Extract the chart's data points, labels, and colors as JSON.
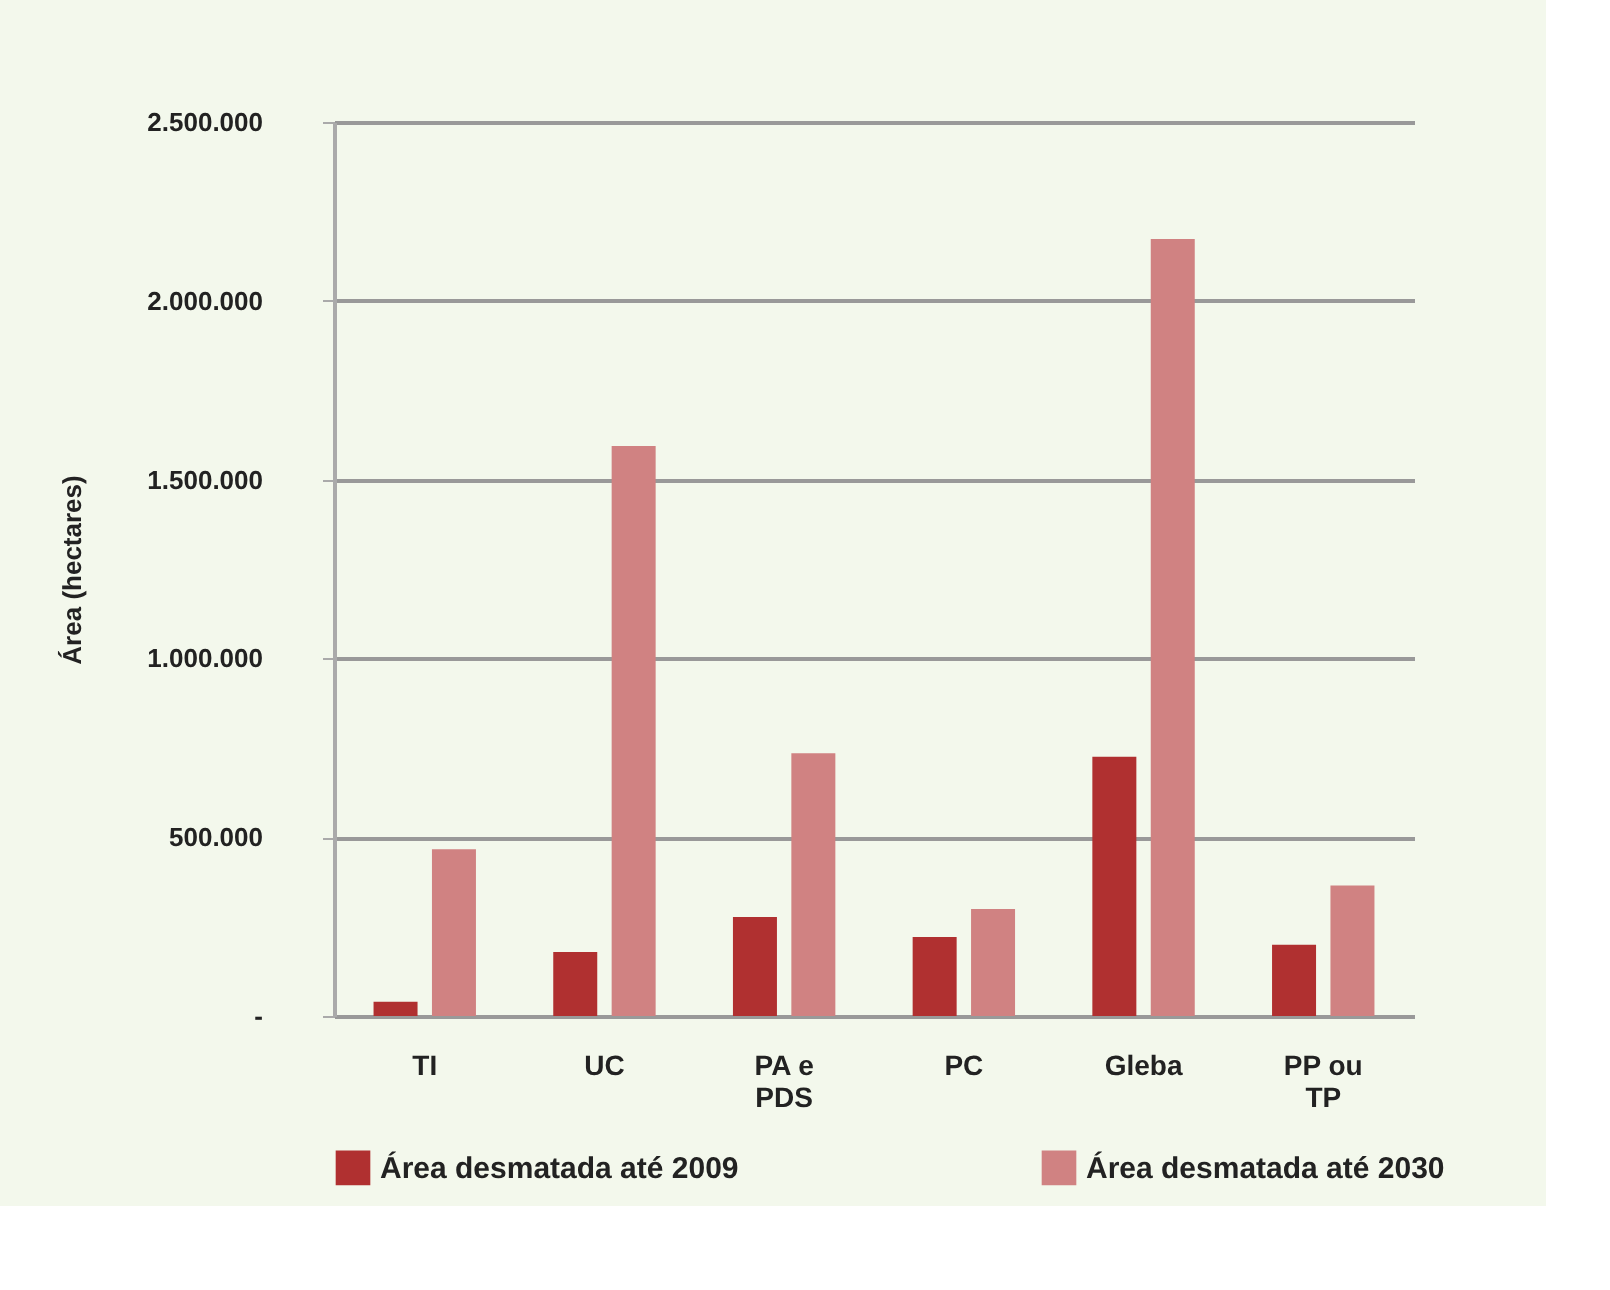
{
  "chart_data": {
    "type": "bar",
    "ylabel": "Área (hectares)",
    "categories": [
      "TI",
      "UC",
      "PA e PDS",
      "PC",
      "Gleba",
      "PP ou TP"
    ],
    "series": [
      {
        "name": "Área desmatada até 2009",
        "color": "#b03030",
        "values": [
          40000,
          179000,
          277000,
          221000,
          725000,
          199000
        ]
      },
      {
        "name": "Área desmatada até 2030",
        "color": "#d08282",
        "values": [
          466000,
          1594000,
          735000,
          299000,
          2173000,
          365000
        ]
      }
    ],
    "ylim": [
      0,
      2500000
    ],
    "yticks": [
      {
        "value": 0,
        "label": "-"
      },
      {
        "value": 500000,
        "label": "500.000"
      },
      {
        "value": 1000000,
        "label": "1.000.000"
      },
      {
        "value": 1500000,
        "label": "1.500.000"
      },
      {
        "value": 2000000,
        "label": "2.000.000"
      },
      {
        "value": 2500000,
        "label": "2.500.000"
      }
    ],
    "grid": "y",
    "legend": "bottom"
  }
}
